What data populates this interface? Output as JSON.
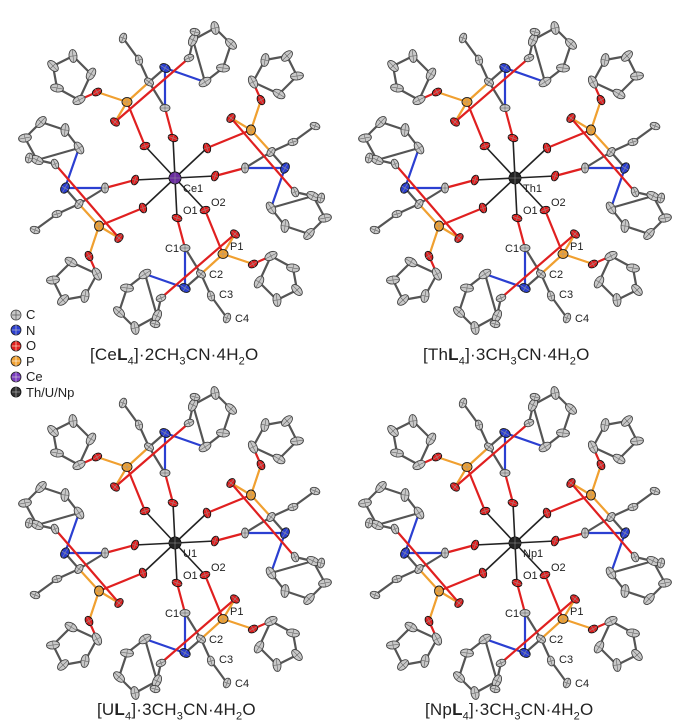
{
  "panels": [
    {
      "metal_label": "Ce1",
      "metal_color": "#6a2ca0",
      "caption": {
        "prefix": "[Ce",
        "L": "L",
        "sub4": "4",
        "rest1": "]·2CH",
        "sub3": "3",
        "rest2": "CN·4H",
        "sub2": "2",
        "rest3": "O"
      }
    },
    {
      "metal_label": "Th1",
      "metal_color": "#222222",
      "caption": {
        "prefix": "[Th",
        "L": "L",
        "sub4": "4",
        "rest1": "]·3CH",
        "sub3": "3",
        "rest2": "CN·4H",
        "sub2": "2",
        "rest3": "O"
      }
    },
    {
      "metal_label": "U1",
      "metal_color": "#222222",
      "caption": {
        "prefix": "[U",
        "L": "L",
        "sub4": "4",
        "rest1": "]·3CH",
        "sub3": "3",
        "rest2": "CN·4H",
        "sub2": "2",
        "rest3": "O"
      }
    },
    {
      "metal_label": "Np1",
      "metal_color": "#222222",
      "caption": {
        "prefix": "[Np",
        "L": "L",
        "sub4": "4",
        "rest1": "]·3CH",
        "sub3": "3",
        "rest2": "CN·4H",
        "sub2": "2",
        "rest3": "O"
      }
    }
  ],
  "atom_labels": {
    "O1": "O1",
    "O2": "O2",
    "P1": "P1",
    "C1": "C1",
    "C2": "C2",
    "C3": "C3",
    "C4": "C4"
  },
  "legend": [
    {
      "label": "C",
      "color": "#b8b8b8"
    },
    {
      "label": "N",
      "color": "#2b3fd1"
    },
    {
      "label": "O",
      "color": "#e02020"
    },
    {
      "label": "P",
      "color": "#f0a030"
    },
    {
      "label": "Ce",
      "color": "#7a3cc0"
    },
    {
      "label": "Th/U/Np",
      "color": "#333333"
    }
  ],
  "colors": {
    "carbon": "#c8c8c8",
    "nitrogen": "#2b3fd1",
    "oxygen": "#e02020",
    "phosphorus": "#f0a030",
    "bond": "#555555"
  }
}
